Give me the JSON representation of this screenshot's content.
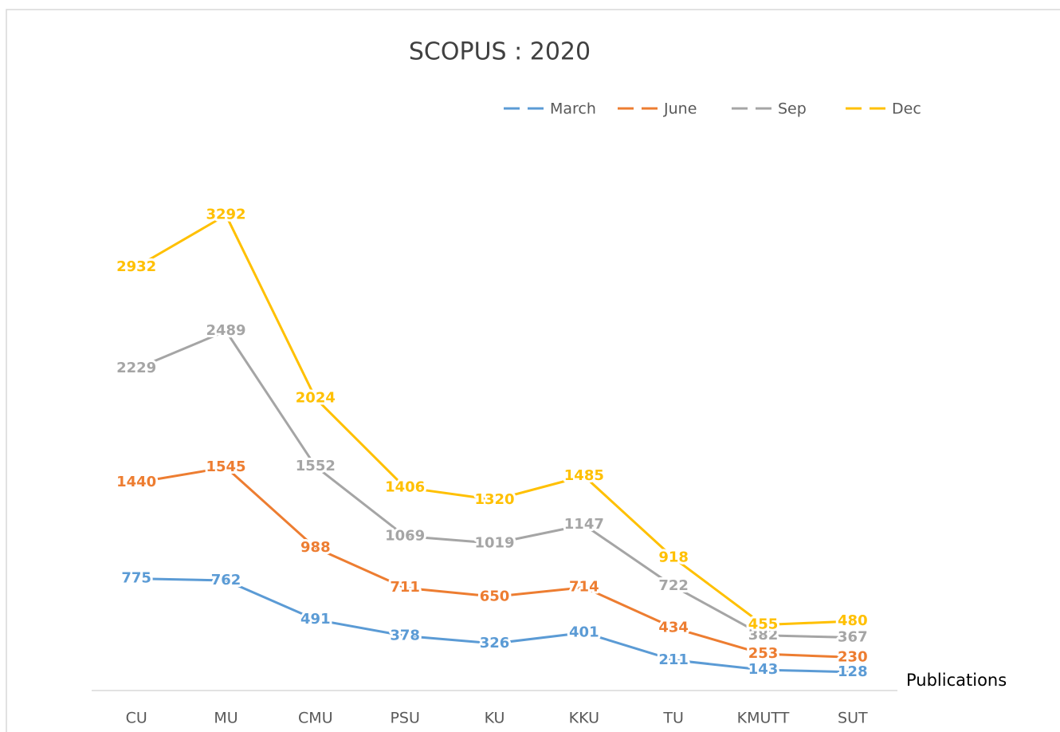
{
  "chart_data": {
    "type": "line",
    "title": "SCOPUS : 2020",
    "x_label": "Publications",
    "categories": [
      "CU",
      "MU",
      "CMU",
      "PSU",
      "KU",
      "KKU",
      "TU",
      "KMUTT",
      "SUT"
    ],
    "ylim": [
      0,
      3500
    ],
    "legend": "top-right",
    "series": [
      {
        "name": "March",
        "color": "#5b9bd5",
        "values": [
          775,
          762,
          491,
          378,
          326,
          401,
          211,
          143,
          128
        ]
      },
      {
        "name": "June",
        "color": "#ed7d31",
        "values": [
          1440,
          1545,
          988,
          711,
          650,
          714,
          434,
          253,
          230
        ]
      },
      {
        "name": "Sep",
        "color": "#a5a5a5",
        "values": [
          2229,
          2489,
          1552,
          1069,
          1019,
          1147,
          722,
          382,
          367
        ]
      },
      {
        "name": "Dec",
        "color": "#ffc000",
        "values": [
          2932,
          3292,
          2024,
          1406,
          1320,
          1485,
          918,
          455,
          480
        ]
      }
    ]
  }
}
